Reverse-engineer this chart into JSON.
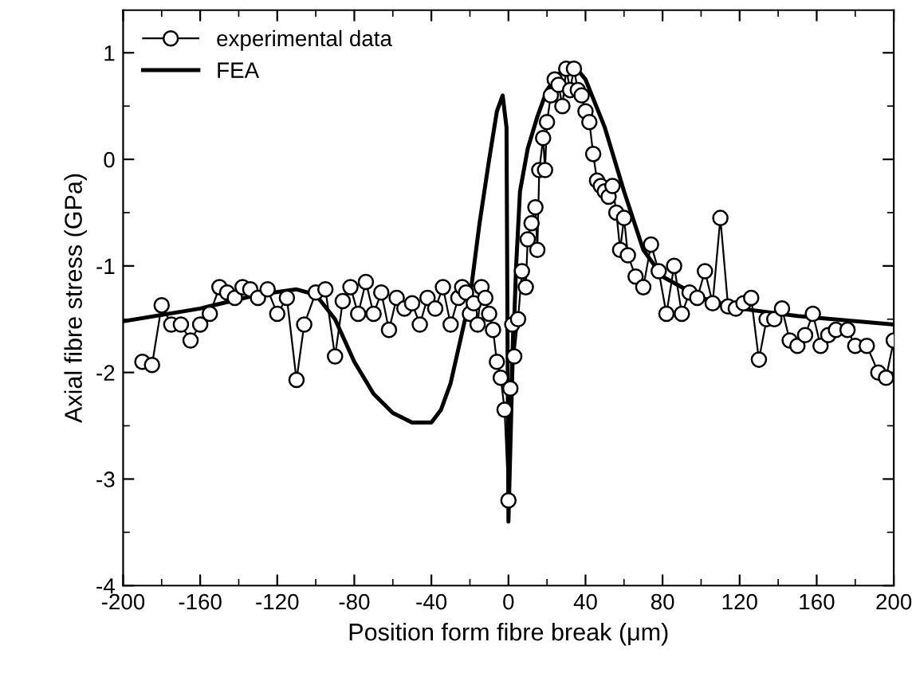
{
  "chart_data": {
    "type": "line",
    "xlabel": "Position form fibre break (μm)",
    "ylabel": "Axial fibre stress (GPa)",
    "xlim": [
      -200,
      200
    ],
    "xticks": [
      -200,
      -160,
      -120,
      -80,
      -40,
      0,
      40,
      80,
      120,
      160,
      200
    ],
    "ylim": [
      -4,
      1.4
    ],
    "yticks": [
      -4,
      -3,
      -2,
      -1,
      0,
      1
    ],
    "grid": false,
    "legend": "top left",
    "series": [
      {
        "name": "experimental data",
        "color": "#000000",
        "marker": "circle",
        "x": [
          -190,
          -185,
          -180,
          -175,
          -170,
          -165,
          -160,
          -155,
          -150,
          -146,
          -142,
          -138,
          -134,
          -130,
          -125,
          -120,
          -115,
          -110,
          -106,
          -100,
          -95,
          -90,
          -86,
          -82,
          -78,
          -74,
          -70,
          -66,
          -62,
          -58,
          -54,
          -50,
          -46,
          -42,
          -38,
          -34,
          -30,
          -26,
          -24,
          -22,
          -20,
          -18,
          -16,
          -14,
          -12,
          -10,
          -8,
          -6,
          -4,
          -2,
          0,
          1,
          2,
          3,
          5,
          7,
          9,
          10,
          12,
          14,
          15,
          16,
          18,
          19,
          20,
          22,
          24,
          26,
          28,
          30,
          32,
          34,
          36,
          38,
          40,
          42,
          44,
          46,
          48,
          50,
          52,
          54,
          56,
          58,
          60,
          62,
          66,
          70,
          74,
          78,
          82,
          86,
          90,
          94,
          98,
          102,
          106,
          110,
          114,
          118,
          122,
          126,
          130,
          134,
          138,
          142,
          146,
          150,
          154,
          158,
          162,
          166,
          170,
          176,
          180,
          186,
          192,
          196,
          200
        ],
        "values": [
          -1.9,
          -1.93,
          -1.37,
          -1.55,
          -1.55,
          -1.7,
          -1.55,
          -1.45,
          -1.2,
          -1.25,
          -1.3,
          -1.2,
          -1.22,
          -1.3,
          -1.22,
          -1.45,
          -1.3,
          -2.07,
          -1.55,
          -1.25,
          -1.22,
          -1.85,
          -1.33,
          -1.2,
          -1.45,
          -1.15,
          -1.45,
          -1.25,
          -1.6,
          -1.3,
          -1.4,
          -1.35,
          -1.55,
          -1.3,
          -1.4,
          -1.2,
          -1.55,
          -1.3,
          -1.2,
          -1.25,
          -1.45,
          -1.35,
          -1.55,
          -1.2,
          -1.3,
          -1.45,
          -1.6,
          -1.9,
          -2.05,
          -2.35,
          -3.2,
          -2.15,
          -1.55,
          -1.85,
          -1.5,
          -1.05,
          -1.2,
          -0.75,
          -0.6,
          -0.45,
          -0.85,
          -0.1,
          0.2,
          -0.1,
          0.35,
          0.6,
          0.75,
          0.7,
          0.5,
          0.85,
          0.65,
          0.85,
          0.65,
          0.6,
          0.45,
          0.35,
          0.05,
          -0.2,
          -0.25,
          -0.3,
          -0.35,
          -0.25,
          -0.5,
          -0.85,
          -0.55,
          -0.9,
          -1.1,
          -1.2,
          -0.8,
          -1.05,
          -1.45,
          -1.0,
          -1.45,
          -1.25,
          -1.3,
          -1.05,
          -1.35,
          -0.55,
          -1.38,
          -1.4,
          -1.35,
          -1.3,
          -1.88,
          -1.5,
          -1.5,
          -1.4,
          -1.7,
          -1.75,
          -1.65,
          -1.45,
          -1.75,
          -1.65,
          -1.6,
          -1.6,
          -1.75,
          -1.75,
          -2.0,
          -2.05,
          -1.7
        ]
      },
      {
        "name": "FEA",
        "color": "#000000",
        "marker": "none",
        "x": [
          -200,
          -160,
          -130,
          -110,
          -100,
          -90,
          -80,
          -70,
          -60,
          -50,
          -40,
          -35,
          -30,
          -20,
          -15,
          -10,
          -6,
          -3,
          -1,
          0,
          2,
          4,
          6,
          10,
          15,
          20,
          25,
          30,
          34,
          40,
          50,
          60,
          70,
          80,
          100,
          120,
          150,
          200
        ],
        "values": [
          -1.52,
          -1.4,
          -1.27,
          -1.22,
          -1.27,
          -1.5,
          -1.9,
          -2.2,
          -2.38,
          -2.47,
          -2.47,
          -2.35,
          -2.1,
          -1.3,
          -0.6,
          0.0,
          0.45,
          0.6,
          0.3,
          -3.4,
          -2.0,
          -1.0,
          -0.3,
          0.1,
          0.4,
          0.65,
          0.78,
          0.87,
          0.88,
          0.75,
          0.3,
          -0.3,
          -0.85,
          -1.1,
          -1.3,
          -1.4,
          -1.47,
          -1.55
        ]
      }
    ]
  }
}
